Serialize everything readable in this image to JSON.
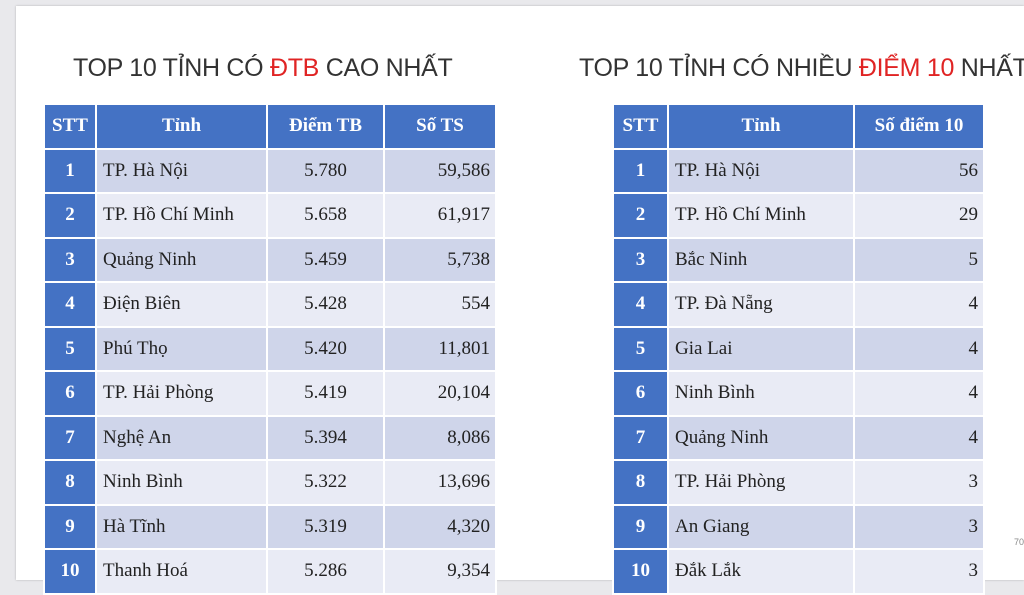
{
  "left": {
    "title_prefix": "TOP 10 TỈNH CÓ ",
    "title_highlight": "ĐTB",
    "title_suffix": " CAO NHẤT",
    "headers": [
      "STT",
      "Tỉnh",
      "Điểm TB",
      "Số TS"
    ],
    "rows": [
      {
        "stt": "1",
        "province": "TP. Hà Nội",
        "avg": "5.780",
        "count": "59,586"
      },
      {
        "stt": "2",
        "province": "TP. Hồ Chí Minh",
        "avg": "5.658",
        "count": "61,917"
      },
      {
        "stt": "3",
        "province": "Quảng Ninh",
        "avg": "5.459",
        "count": "5,738"
      },
      {
        "stt": "4",
        "province": "Điện Biên",
        "avg": "5.428",
        "count": "554"
      },
      {
        "stt": "5",
        "province": "Phú Thọ",
        "avg": "5.420",
        "count": "11,801"
      },
      {
        "stt": "6",
        "province": "TP. Hải Phòng",
        "avg": "5.419",
        "count": "20,104"
      },
      {
        "stt": "7",
        "province": "Nghệ An",
        "avg": "5.394",
        "count": "8,086"
      },
      {
        "stt": "8",
        "province": "Ninh Bình",
        "avg": "5.322",
        "count": "13,696"
      },
      {
        "stt": "9",
        "province": "Hà Tĩnh",
        "avg": "5.319",
        "count": "4,320"
      },
      {
        "stt": "10",
        "province": "Thanh Hoá",
        "avg": "5.286",
        "count": "9,354"
      }
    ]
  },
  "right": {
    "title_prefix": "TOP 10 TỈNH CÓ NHIỀU ",
    "title_highlight": "ĐIỂM 10",
    "title_suffix": " NHẤT",
    "headers": [
      "STT",
      "Tỉnh",
      "Số điểm 10"
    ],
    "rows": [
      {
        "stt": "1",
        "province": "TP. Hà Nội",
        "tens": "56"
      },
      {
        "stt": "2",
        "province": "TP. Hồ Chí Minh",
        "tens": "29"
      },
      {
        "stt": "3",
        "province": "Bắc Ninh",
        "tens": "5"
      },
      {
        "stt": "4",
        "province": "TP. Đà Nẵng",
        "tens": "4"
      },
      {
        "stt": "5",
        "province": "Gia Lai",
        "tens": "4"
      },
      {
        "stt": "6",
        "province": "Ninh Bình",
        "tens": "4"
      },
      {
        "stt": "7",
        "province": "Quảng Ninh",
        "tens": "4"
      },
      {
        "stt": "8",
        "province": "TP. Hải Phòng",
        "tens": "3"
      },
      {
        "stt": "9",
        "province": "An Giang",
        "tens": "3"
      },
      {
        "stt": "10",
        "province": "Đắk Lắk",
        "tens": "3"
      }
    ]
  },
  "page_number": "70",
  "colors": {
    "header_blue": "#4472c4",
    "row_dark": "#cfd5ea",
    "row_light": "#e9ebf5",
    "highlight_red": "#e02424"
  }
}
